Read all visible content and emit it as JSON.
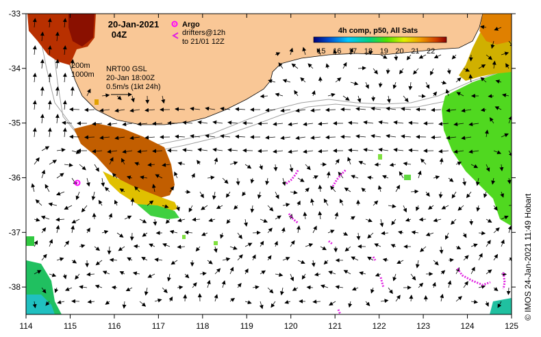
{
  "header": {
    "date": "20-Jan-2021",
    "time": "04Z"
  },
  "legend_argo": {
    "argo_label": "Argo",
    "drifters_label": "drifters@12h",
    "drifters_to": "to 21/01 12Z"
  },
  "legend_depth": {
    "contour_1": "200m",
    "contour_2": "1000m"
  },
  "legend_current": {
    "line1": "NRT00 GSL",
    "line2": "20-Jan 18:00Z",
    "line3": "0.5m/s (1kt 24h)"
  },
  "colorbar": {
    "title": "4h comp, p50, All Sats",
    "ticks": [
      "15",
      "16",
      "17",
      "18",
      "19",
      "20",
      "21",
      "22"
    ]
  },
  "axes": {
    "x_ticks": [
      "114",
      "115",
      "116",
      "117",
      "118",
      "119",
      "120",
      "121",
      "122",
      "123",
      "124",
      "125"
    ],
    "y_ticks": [
      "-33",
      "-34",
      "-35",
      "-36",
      "-37",
      "-38"
    ]
  },
  "credit": "© IMOS 24-Jan-2021 11:49 Hobart",
  "colors": {
    "land": "#f9c796",
    "argo": "#ff00ff",
    "drifters": "#e020e0",
    "contours": "#a0a0a0"
  },
  "chart_data": {
    "type": "map",
    "x_range_deg_east": [
      114,
      125
    ],
    "y_range_deg_lat": [
      -38.5,
      -33
    ],
    "sst_range_c": [
      14.5,
      23
    ],
    "argo_floats": [
      {
        "lon": 115.1,
        "lat": -36.1
      }
    ]
  }
}
